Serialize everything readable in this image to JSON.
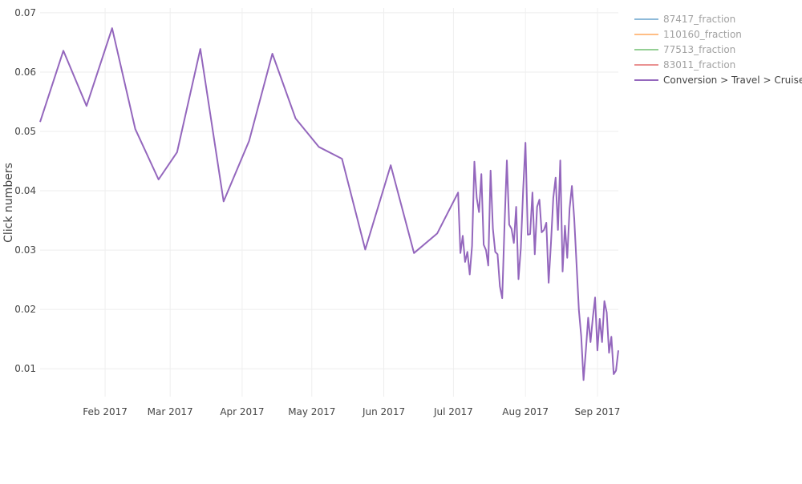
{
  "chart_data": {
    "type": "line",
    "title": "",
    "xlabel": "",
    "ylabel": "Click numbers",
    "xlim": [
      "2017-01-04",
      "2017-09-10"
    ],
    "ylim": [
      0.0053,
      0.0708
    ],
    "grid": true,
    "legend_position": "top-right",
    "x_ticks": [
      {
        "date": "2017-02-01",
        "label": "Feb 2017"
      },
      {
        "date": "2017-03-01",
        "label": "Mar 2017"
      },
      {
        "date": "2017-04-01",
        "label": "Apr 2017"
      },
      {
        "date": "2017-05-01",
        "label": "May 2017"
      },
      {
        "date": "2017-06-01",
        "label": "Jun 2017"
      },
      {
        "date": "2017-07-01",
        "label": "Jul 2017"
      },
      {
        "date": "2017-08-01",
        "label": "Aug 2017"
      },
      {
        "date": "2017-09-01",
        "label": "Sep 2017"
      }
    ],
    "y_ticks": [
      {
        "value": 0.01,
        "label": "0.01"
      },
      {
        "value": 0.02,
        "label": "0.02"
      },
      {
        "value": 0.03,
        "label": "0.03"
      },
      {
        "value": 0.04,
        "label": "0.04"
      },
      {
        "value": 0.05,
        "label": "0.05"
      },
      {
        "value": 0.06,
        "label": "0.06"
      },
      {
        "value": 0.07,
        "label": "0.07"
      }
    ],
    "series": [
      {
        "name": "87417_fraction",
        "color": "#1f77b4",
        "visible": "legendonly",
        "x": [],
        "values": []
      },
      {
        "name": "110160_fraction",
        "color": "#ff7f0e",
        "visible": "legendonly",
        "x": [],
        "values": []
      },
      {
        "name": "77513_fraction",
        "color": "#2ca02c",
        "visible": "legendonly",
        "x": [],
        "values": []
      },
      {
        "name": "83011_fraction",
        "color": "#d62728",
        "visible": "legendonly",
        "x": [],
        "values": []
      },
      {
        "name": "Conversion > Travel > Cruise",
        "color": "#9467bd",
        "visible": true,
        "x": [
          "2017-01-04",
          "2017-01-14",
          "2017-01-24",
          "2017-02-04",
          "2017-02-14",
          "2017-02-24",
          "2017-03-04",
          "2017-03-14",
          "2017-03-24",
          "2017-04-04",
          "2017-04-14",
          "2017-04-24",
          "2017-05-04",
          "2017-05-14",
          "2017-05-24",
          "2017-06-04",
          "2017-06-14",
          "2017-06-24",
          "2017-07-03",
          "2017-07-04",
          "2017-07-05",
          "2017-07-06",
          "2017-07-07",
          "2017-07-08",
          "2017-07-09",
          "2017-07-10",
          "2017-07-11",
          "2017-07-12",
          "2017-07-13",
          "2017-07-14",
          "2017-07-15",
          "2017-07-16",
          "2017-07-17",
          "2017-07-18",
          "2017-07-19",
          "2017-07-20",
          "2017-07-21",
          "2017-07-22",
          "2017-07-23",
          "2017-07-24",
          "2017-07-25",
          "2017-07-26",
          "2017-07-27",
          "2017-07-28",
          "2017-07-29",
          "2017-07-30",
          "2017-07-31",
          "2017-08-01",
          "2017-08-02",
          "2017-08-03",
          "2017-08-04",
          "2017-08-05",
          "2017-08-06",
          "2017-08-07",
          "2017-08-08",
          "2017-08-09",
          "2017-08-10",
          "2017-08-11",
          "2017-08-12",
          "2017-08-13",
          "2017-08-14",
          "2017-08-15",
          "2017-08-16",
          "2017-08-17",
          "2017-08-18",
          "2017-08-19",
          "2017-08-20",
          "2017-08-21",
          "2017-08-22",
          "2017-08-23",
          "2017-08-24",
          "2017-08-25",
          "2017-08-26",
          "2017-08-27",
          "2017-08-28",
          "2017-08-29",
          "2017-08-30",
          "2017-08-31",
          "2017-09-01",
          "2017-09-02",
          "2017-09-03",
          "2017-09-04",
          "2017-09-05",
          "2017-09-06",
          "2017-09-07",
          "2017-09-08",
          "2017-09-09",
          "2017-09-10"
        ],
        "values": [
          0.0516,
          0.0636,
          0.0543,
          0.0674,
          0.0504,
          0.0419,
          0.0465,
          0.0639,
          0.0382,
          0.0484,
          0.0631,
          0.0522,
          0.0474,
          0.0454,
          0.0301,
          0.0443,
          0.0295,
          0.0328,
          0.0397,
          0.0295,
          0.0324,
          0.028,
          0.0297,
          0.0259,
          0.0307,
          0.0449,
          0.0388,
          0.0364,
          0.0428,
          0.0309,
          0.03,
          0.0274,
          0.0434,
          0.0336,
          0.0297,
          0.0293,
          0.0239,
          0.0219,
          0.0343,
          0.0451,
          0.0343,
          0.0336,
          0.0312,
          0.0373,
          0.0251,
          0.0303,
          0.0401,
          0.0481,
          0.0326,
          0.0327,
          0.0397,
          0.0293,
          0.0373,
          0.0385,
          0.033,
          0.0334,
          0.0346,
          0.0245,
          0.0312,
          0.0388,
          0.0422,
          0.0334,
          0.0451,
          0.0264,
          0.0341,
          0.0287,
          0.037,
          0.0408,
          0.0353,
          0.0276,
          0.0199,
          0.0155,
          0.0081,
          0.0131,
          0.0186,
          0.0145,
          0.0185,
          0.022,
          0.0131,
          0.0184,
          0.0145,
          0.0214,
          0.0195,
          0.0127,
          0.0154,
          0.0091,
          0.0097,
          0.0131
        ]
      }
    ]
  }
}
